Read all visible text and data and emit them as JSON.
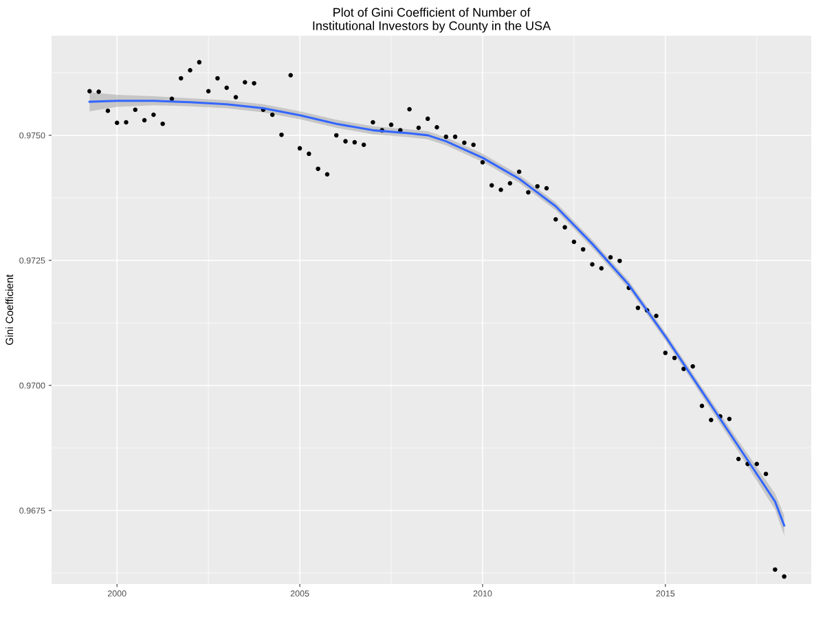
{
  "chart_data": {
    "type": "scatter",
    "title": "Plot of Gini Coefficient of Number of\nInstitutional Investors by County in the USA",
    "ylabel": "Gini Coefficient",
    "xlim": [
      1998.21,
      2018.99
    ],
    "ylim": [
      0.96603,
      0.97699
    ],
    "xticks": [
      2000,
      {
        "value": 2002.5,
        "label": null
      },
      2005,
      {
        "value": 2007.5,
        "label": null
      },
      2010,
      {
        "value": 2012.5,
        "label": null
      },
      2015,
      {
        "value": 2017.5,
        "label": null
      }
    ],
    "yticks": [
      {
        "value": 0.96625,
        "label": null
      },
      {
        "value": 0.9675,
        "label": "0.9675"
      },
      {
        "value": 0.96875,
        "label": null
      },
      {
        "value": 0.97,
        "label": "0.9700"
      },
      {
        "value": 0.97125,
        "label": null
      },
      {
        "value": 0.9725,
        "label": "0.9725"
      },
      {
        "value": 0.97375,
        "label": null
      },
      {
        "value": 0.975,
        "label": "0.9750"
      },
      {
        "value": 0.97625,
        "label": null
      }
    ],
    "grid": true,
    "series": [
      {
        "marker": "circle",
        "color": "#000000",
        "x": [
          1999.25,
          1999.5,
          1999.75,
          2000.0,
          2000.25,
          2000.5,
          2000.75,
          2001.0,
          2001.25,
          2001.5,
          2001.75,
          2002.0,
          2002.25,
          2002.5,
          2002.75,
          2003.0,
          2003.25,
          2003.5,
          2003.75,
          2004.0,
          2004.25,
          2004.5,
          2004.75,
          2005.0,
          2005.25,
          2005.5,
          2005.75,
          2006.0,
          2006.25,
          2006.5,
          2006.75,
          2007.0,
          2007.25,
          2007.5,
          2007.75,
          2008.0,
          2008.25,
          2008.5,
          2008.75,
          2009.0,
          2009.25,
          2009.5,
          2009.75,
          2010.0,
          2010.25,
          2010.5,
          2010.75,
          2011.0,
          2011.25,
          2011.5,
          2011.75,
          2012.0,
          2012.25,
          2012.5,
          2012.75,
          2013.0,
          2013.25,
          2013.5,
          2013.75,
          2014.0,
          2014.25,
          2014.5,
          2014.75,
          2015.0,
          2015.25,
          2015.5,
          2015.75,
          2016.0,
          2016.25,
          2016.5,
          2016.75,
          2017.0,
          2017.25,
          2017.5,
          2017.75,
          2018.0,
          2018.25
        ],
        "values": [
          0.97588,
          0.97587,
          0.97549,
          0.97525,
          0.97526,
          0.97551,
          0.9753,
          0.97541,
          0.97523,
          0.97573,
          0.97614,
          0.9763,
          0.97646,
          0.97588,
          0.97614,
          0.97595,
          0.97576,
          0.97606,
          0.97604,
          0.97551,
          0.97541,
          0.97501,
          0.9762,
          0.97474,
          0.97463,
          0.97433,
          0.97422,
          0.975,
          0.97488,
          0.97486,
          0.97481,
          0.97526,
          0.9751,
          0.97521,
          0.9751,
          0.97552,
          0.97515,
          0.97533,
          0.97516,
          0.97497,
          0.97497,
          0.97485,
          0.97481,
          0.97446,
          0.974,
          0.97391,
          0.97404,
          0.97427,
          0.97386,
          0.97398,
          0.97394,
          0.97332,
          0.97316,
          0.97287,
          0.97272,
          0.97242,
          0.97234,
          0.97256,
          0.97249,
          0.97195,
          0.97155,
          0.9715,
          0.97139,
          0.97065,
          0.97055,
          0.97033,
          0.97038,
          0.96959,
          0.96931,
          0.96938,
          0.96933,
          0.96853,
          0.96843,
          0.96843,
          0.96823,
          0.96632,
          0.96618
        ]
      },
      {
        "type": "line",
        "marker": "none",
        "color": "#3366ff",
        "x": [
          1999.25,
          2000,
          2001,
          2002,
          2003,
          2004,
          2005,
          2006,
          2007,
          2008,
          2008.5,
          2009,
          2010,
          2011,
          2012,
          2013,
          2014,
          2015,
          2016,
          2017,
          2018,
          2018.25
        ],
        "values": [
          0.97567,
          0.97569,
          0.97569,
          0.97566,
          0.97562,
          0.97554,
          0.9754,
          0.97523,
          0.9751,
          0.97504,
          0.975,
          0.97488,
          0.97455,
          0.97413,
          0.97358,
          0.97283,
          0.97201,
          0.97098,
          0.96988,
          0.96878,
          0.96768,
          0.9672
        ],
        "lower": [
          0.97548,
          0.97557,
          0.9756,
          0.97558,
          0.97554,
          0.97546,
          0.97532,
          0.97515,
          0.97502,
          0.97496,
          0.97492,
          0.9748,
          0.97447,
          0.97405,
          0.9735,
          0.97275,
          0.97193,
          0.9709,
          0.96979,
          0.96867,
          0.96752,
          0.967
        ],
        "upper": [
          0.97586,
          0.97581,
          0.97578,
          0.97574,
          0.9757,
          0.97562,
          0.97548,
          0.97531,
          0.97518,
          0.97512,
          0.97508,
          0.97496,
          0.97463,
          0.97421,
          0.97366,
          0.97291,
          0.97209,
          0.97106,
          0.96997,
          0.96889,
          0.96784,
          0.9674
        ]
      }
    ]
  }
}
